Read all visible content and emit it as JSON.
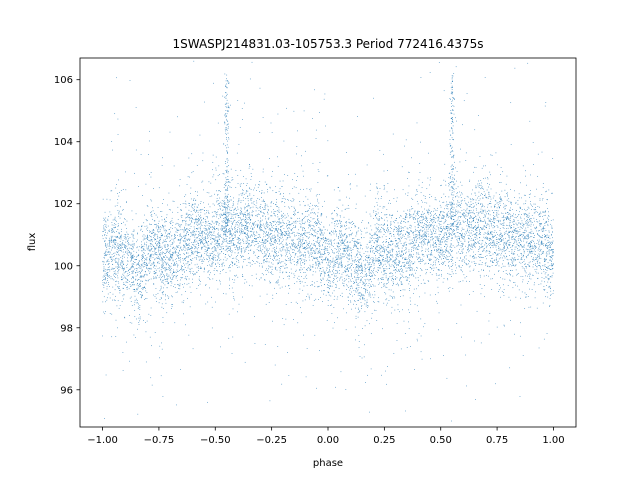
{
  "chart_data": {
    "type": "scatter",
    "title": "1SWASPJ214831.03-105753.3 Period 772416.4375s",
    "xlabel": "phase",
    "ylabel": "flux",
    "xlim": [
      -1.1,
      1.1
    ],
    "ylim": [
      94.8,
      106.7
    ],
    "x_ticks": [
      -1.0,
      -0.75,
      -0.5,
      -0.25,
      0.0,
      0.25,
      0.5,
      0.75,
      1.0
    ],
    "x_tick_labels": [
      "−1.00",
      "−0.75",
      "−0.50",
      "−0.25",
      "0.00",
      "0.25",
      "0.50",
      "0.75",
      "1.00"
    ],
    "y_ticks": [
      96,
      98,
      100,
      102,
      104,
      106
    ],
    "y_tick_labels": [
      "96",
      "98",
      "100",
      "102",
      "104",
      "106"
    ],
    "grid": false,
    "legend": "none",
    "marker_color": "#1f77b4",
    "series": [
      {
        "phase_range": [
          -1.0,
          1.0
        ],
        "baseline_flux": 100.7,
        "core_spread": 0.75,
        "envelope": [
          {
            "x": -1.0,
            "y": 100.1
          },
          {
            "x": -0.95,
            "y": 100.6
          },
          {
            "x": -0.88,
            "y": 100.2
          },
          {
            "x": -0.84,
            "y": 99.6
          },
          {
            "x": -0.78,
            "y": 100.6
          },
          {
            "x": -0.7,
            "y": 100.2
          },
          {
            "x": -0.6,
            "y": 101.0
          },
          {
            "x": -0.52,
            "y": 100.8
          },
          {
            "x": -0.45,
            "y": 101.2
          },
          {
            "x": -0.4,
            "y": 101.0
          },
          {
            "x": -0.35,
            "y": 101.4
          },
          {
            "x": -0.25,
            "y": 101.0
          },
          {
            "x": -0.15,
            "y": 100.8
          },
          {
            "x": -0.05,
            "y": 100.7
          },
          {
            "x": 0.0,
            "y": 100.1
          },
          {
            "x": 0.05,
            "y": 100.6
          },
          {
            "x": 0.12,
            "y": 100.2
          },
          {
            "x": 0.16,
            "y": 99.6
          },
          {
            "x": 0.22,
            "y": 100.6
          },
          {
            "x": 0.3,
            "y": 100.2
          },
          {
            "x": 0.4,
            "y": 101.0
          },
          {
            "x": 0.48,
            "y": 100.8
          },
          {
            "x": 0.55,
            "y": 101.2
          },
          {
            "x": 0.6,
            "y": 101.0
          },
          {
            "x": 0.65,
            "y": 101.4
          },
          {
            "x": 0.75,
            "y": 101.0
          },
          {
            "x": 0.85,
            "y": 100.8
          },
          {
            "x": 0.95,
            "y": 100.7
          },
          {
            "x": 1.0,
            "y": 100.4
          }
        ],
        "spikes": [
          {
            "x": -0.45,
            "y_max": 106.2
          },
          {
            "x": 0.55,
            "y_max": 106.2
          }
        ]
      }
    ]
  }
}
